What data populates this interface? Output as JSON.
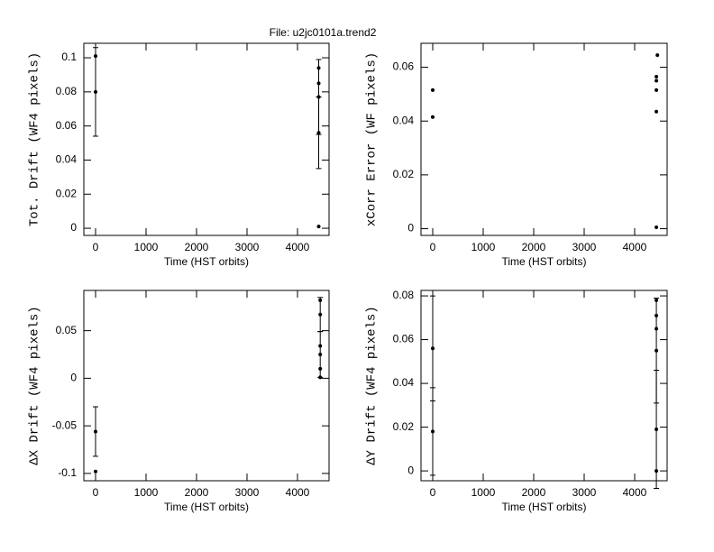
{
  "title": "File: u2jc0101a.trend2",
  "chart_data": [
    {
      "type": "scatter",
      "x_label": "Time (HST orbits)",
      "y_label": "Tot. Drift (WF4 pixels)",
      "color": "#000000",
      "xlim": [
        -232,
        4625
      ],
      "ylim": [
        -0.0042,
        0.1085
      ],
      "xticks": [
        0,
        1000,
        2000,
        3000,
        4000
      ],
      "yticks": [
        0,
        0.02,
        0.04,
        0.06,
        0.08,
        0.1
      ],
      "series": [
        {
          "x": [
            0,
            0,
            4420,
            4420,
            4420,
            4420,
            4420
          ],
          "values": [
            0.101,
            0.08,
            0.094,
            0.085,
            0.077,
            0.056,
            0.001
          ],
          "errors": [
            null,
            0.026,
            null,
            null,
            0.022,
            0.021,
            null
          ]
        }
      ]
    },
    {
      "type": "scatter",
      "x_label": "Time (HST orbits)",
      "y_label": "xCorr Error (WF pixels)",
      "color": "#000000",
      "xlim": [
        -232,
        4643
      ],
      "ylim": [
        -0.0025,
        0.0689
      ],
      "xticks": [
        0,
        1000,
        2000,
        3000,
        4000
      ],
      "yticks": [
        0,
        0.02,
        0.04,
        0.06
      ],
      "series": [
        {
          "x": [
            0,
            0,
            4450,
            4430,
            4430,
            4430,
            4430,
            4430
          ],
          "values": [
            0.0515,
            0.0415,
            0.0645,
            0.0565,
            0.055,
            0.0515,
            0.0435,
            0.0005
          ],
          "errors": [
            null,
            null,
            null,
            null,
            null,
            null,
            null,
            null
          ]
        }
      ]
    },
    {
      "type": "scatter",
      "x_label": "Time (HST orbits)",
      "y_label": "ΔX Drift (WF4 pixels)",
      "color": "#000000",
      "xlim": [
        -232,
        4625
      ],
      "ylim": [
        -0.1077,
        0.0923
      ],
      "xticks": [
        0,
        1000,
        2000,
        3000,
        4000
      ],
      "yticks": [
        -0.1,
        -0.05,
        0,
        0.05
      ],
      "series": [
        {
          "x": [
            0,
            0,
            4450,
            4450,
            4450,
            4450,
            4450,
            4450
          ],
          "values": [
            -0.056,
            -0.098,
            0.082,
            0.067,
            0.034,
            0.025,
            0.01,
            0.001
          ],
          "errors": [
            0.026,
            null,
            null,
            0.018,
            null,
            0.024,
            null,
            null
          ]
        }
      ]
    },
    {
      "type": "scatter",
      "x_label": "Time (HST orbits)",
      "y_label": "ΔY Drift (WF4 pixels)",
      "color": "#000000",
      "xlim": [
        -232,
        4643
      ],
      "ylim": [
        -0.0045,
        0.0825
      ],
      "xticks": [
        0,
        1000,
        2000,
        3000,
        4000
      ],
      "yticks": [
        0,
        0.02,
        0.04,
        0.06,
        0.08
      ],
      "series": [
        {
          "x": [
            0,
            0,
            4430,
            4430,
            4430,
            4430,
            4430,
            4430
          ],
          "values": [
            0.056,
            0.018,
            0.078,
            0.071,
            0.065,
            0.055,
            0.019,
            0
          ],
          "errors": [
            0.024,
            0.02,
            null,
            null,
            null,
            0.024,
            0.027,
            null
          ]
        }
      ]
    }
  ]
}
